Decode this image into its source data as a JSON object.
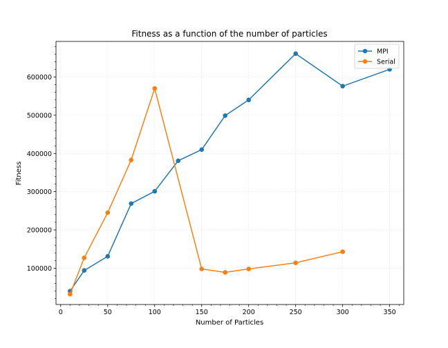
{
  "chart_data": {
    "type": "line",
    "title": "Fitness as a function of the number of particles",
    "xlabel": "Number of Particles",
    "ylabel": "Fitness",
    "xlim": [
      -5,
      365
    ],
    "ylim": [
      5000,
      693000
    ],
    "xticks": [
      0,
      50,
      100,
      150,
      200,
      250,
      300,
      350
    ],
    "yticks": [
      100000,
      200000,
      300000,
      400000,
      500000,
      600000
    ],
    "xtick_labels": [
      "0",
      "50",
      "100",
      "150",
      "200",
      "250",
      "300",
      "350"
    ],
    "ytick_labels": [
      "100000",
      "200000",
      "300000",
      "400000",
      "500000",
      "600000"
    ],
    "grid": true,
    "legend_position": "top-right",
    "series": [
      {
        "name": "MPI",
        "color": "#1f77b4",
        "x": [
          10,
          25,
          50,
          75,
          100,
          125,
          150,
          175,
          200,
          250,
          300,
          350
        ],
        "y": [
          40000,
          94000,
          131000,
          269000,
          301000,
          381000,
          410000,
          499000,
          540000,
          661000,
          576000,
          620000
        ]
      },
      {
        "name": "Serial",
        "color": "#ff7f0e",
        "x": [
          10,
          25,
          50,
          75,
          100,
          150,
          175,
          200,
          250,
          300
        ],
        "y": [
          32000,
          127000,
          245000,
          383000,
          570000,
          98000,
          89000,
          98000,
          114000,
          143000
        ]
      }
    ]
  }
}
